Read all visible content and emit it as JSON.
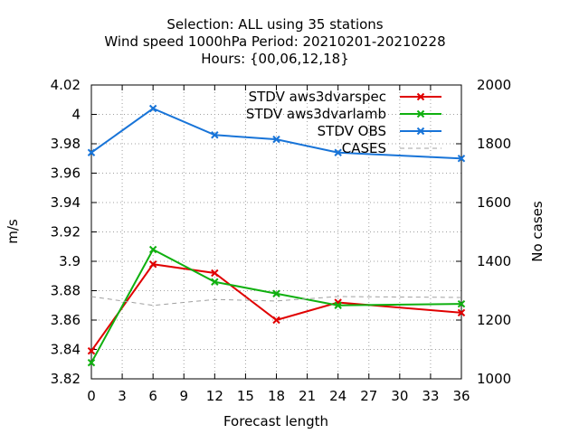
{
  "chart_data": {
    "type": "line",
    "title_lines": [
      "Selection: ALL using    35 stations",
      "Wind speed 1000hPa   Period: 20210201-20210228",
      "Hours: {00,06,12,18}"
    ],
    "xlabel": "Forecast length",
    "ylabel": "m/s",
    "y2label": "No cases",
    "x_ticks": [
      0,
      3,
      6,
      9,
      12,
      15,
      18,
      21,
      24,
      27,
      30,
      33,
      36
    ],
    "y_ticks": [
      "3.82",
      "3.84",
      "3.86",
      "3.88",
      "3.9",
      "3.92",
      "3.94",
      "3.96",
      "3.98",
      "4",
      "4.02"
    ],
    "y2_ticks": [
      "1000",
      "1200",
      "1400",
      "1600",
      "1800",
      "2000"
    ],
    "xlim": [
      0,
      36
    ],
    "ylim": [
      3.82,
      4.02
    ],
    "y2lim": [
      1000,
      2000
    ],
    "grid": true,
    "legend_position": "top-right",
    "series": [
      {
        "name": "STDV aws3dvarspec",
        "color": "#e00000",
        "marker": "x",
        "axis": "y",
        "x": [
          0,
          6,
          12,
          18,
          24,
          36
        ],
        "y": [
          3.839,
          3.898,
          3.892,
          3.86,
          3.872,
          3.865
        ]
      },
      {
        "name": "STDV aws3dvarlamb",
        "color": "#10b010",
        "marker": "x",
        "axis": "y",
        "x": [
          0,
          6,
          12,
          18,
          24,
          36
        ],
        "y": [
          3.831,
          3.908,
          3.886,
          3.878,
          3.87,
          3.871
        ]
      },
      {
        "name": "STDV OBS",
        "color": "#1874d8",
        "marker": "x",
        "axis": "y",
        "x": [
          0,
          6,
          12,
          18,
          24,
          36
        ],
        "y": [
          3.974,
          4.004,
          3.986,
          3.983,
          3.974,
          3.97
        ]
      },
      {
        "name": "CASES",
        "color": "#a0a0a0",
        "marker": "none",
        "dashed": true,
        "axis": "y2",
        "x": [
          0,
          6,
          12,
          18,
          24,
          36
        ],
        "y": [
          1280,
          1250,
          1270,
          1265,
          1280,
          1277
        ]
      }
    ]
  }
}
